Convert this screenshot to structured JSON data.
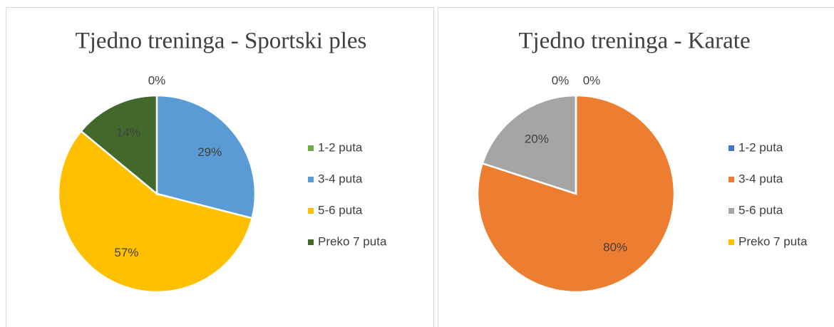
{
  "chart_data": [
    {
      "type": "pie",
      "title": "Tjedno treninga - Sportski ples",
      "categories": [
        "1-2 puta",
        "3-4 puta",
        "5-6 puta",
        "Preko 7 puta"
      ],
      "values": [
        0,
        29,
        57,
        14
      ],
      "value_labels": [
        "0%",
        "29%",
        "57%",
        "14%"
      ],
      "colors": [
        "#70ad47",
        "#5b9bd5",
        "#ffc000",
        "#43682b"
      ],
      "legend": "right"
    },
    {
      "type": "pie",
      "title": "Tjedno treninga - Karate",
      "categories": [
        "1-2 puta",
        "3-4 puta",
        "5-6 puta",
        "Preko 7 puta"
      ],
      "values": [
        0,
        80,
        20,
        0
      ],
      "value_labels": [
        "0%",
        "80%",
        "20%",
        "0%"
      ],
      "colors": [
        "#4472c4",
        "#ed7d31",
        "#a5a5a5",
        "#ffc000"
      ],
      "legend": "right"
    }
  ]
}
